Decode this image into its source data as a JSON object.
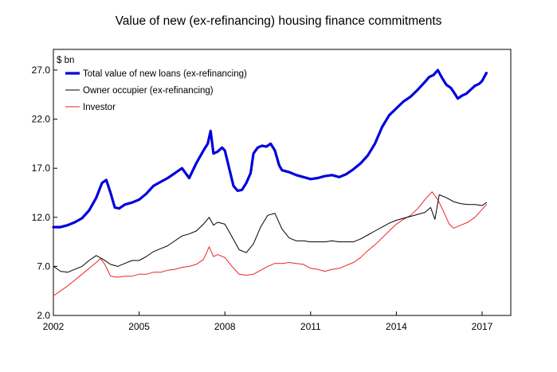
{
  "chart_data": {
    "type": "line",
    "title": "Value of new (ex-refinancing) housing finance commitments",
    "unit_label": "$ bn",
    "ylim": [
      2.0,
      29.5
    ],
    "yticks": [
      "2.0",
      "7.0",
      "12.0",
      "17.0",
      "22.0",
      "27.0"
    ],
    "xlim": [
      2002,
      2017.6
    ],
    "xticks": [
      "2002",
      "2005",
      "2008",
      "2011",
      "2014",
      "2017"
    ],
    "grid": false,
    "legend_position": "top-left",
    "series": [
      {
        "name": "Total value of new loans (ex-refinancing)",
        "color": "#0000dd",
        "x": [
          2002.0,
          2002.25,
          2002.5,
          2002.75,
          2003.0,
          2003.25,
          2003.5,
          2003.7,
          2003.85,
          2004.0,
          2004.15,
          2004.3,
          2004.5,
          2004.75,
          2005.0,
          2005.25,
          2005.5,
          2005.75,
          2006.0,
          2006.25,
          2006.5,
          2006.75,
          2007.0,
          2007.25,
          2007.4,
          2007.5,
          2007.6,
          2007.75,
          2007.9,
          2008.0,
          2008.15,
          2008.3,
          2008.45,
          2008.6,
          2008.75,
          2008.9,
          2009.0,
          2009.15,
          2009.3,
          2009.45,
          2009.6,
          2009.75,
          2009.9,
          2010.0,
          2010.25,
          2010.5,
          2010.75,
          2011.0,
          2011.25,
          2011.5,
          2011.75,
          2012.0,
          2012.25,
          2012.5,
          2012.75,
          2013.0,
          2013.25,
          2013.5,
          2013.75,
          2014.0,
          2014.25,
          2014.5,
          2014.75,
          2015.0,
          2015.15,
          2015.3,
          2015.45,
          2015.6,
          2015.75,
          2015.9,
          2016.0,
          2016.15,
          2016.3,
          2016.45,
          2016.6,
          2016.75,
          2016.9,
          2017.0,
          2017.15
        ],
        "values": [
          11.0,
          11.0,
          11.2,
          11.5,
          11.9,
          12.7,
          14.0,
          15.5,
          15.8,
          14.5,
          13.0,
          12.9,
          13.3,
          13.5,
          13.8,
          14.4,
          15.2,
          15.6,
          16.0,
          16.5,
          17.0,
          16.0,
          17.5,
          18.8,
          19.5,
          20.8,
          18.5,
          18.7,
          19.1,
          18.8,
          17.0,
          15.2,
          14.7,
          14.8,
          15.5,
          16.5,
          18.5,
          19.1,
          19.3,
          19.2,
          19.5,
          18.8,
          17.3,
          16.8,
          16.6,
          16.3,
          16.1,
          15.9,
          16.0,
          16.2,
          16.3,
          16.1,
          16.4,
          16.9,
          17.5,
          18.3,
          19.5,
          21.2,
          22.4,
          23.1,
          23.8,
          24.3,
          25.0,
          25.8,
          26.3,
          26.5,
          27.0,
          26.2,
          25.5,
          25.2,
          24.8,
          24.1,
          24.4,
          24.6,
          25.0,
          25.4,
          25.6,
          25.9,
          26.7
        ]
      },
      {
        "name": "Owner occupier (ex-refinancing)",
        "color": "#000000",
        "x": [
          2002.0,
          2002.25,
          2002.5,
          2002.75,
          2003.0,
          2003.25,
          2003.5,
          2003.75,
          2004.0,
          2004.25,
          2004.5,
          2004.75,
          2005.0,
          2005.25,
          2005.5,
          2005.75,
          2006.0,
          2006.25,
          2006.5,
          2006.75,
          2007.0,
          2007.25,
          2007.45,
          2007.6,
          2007.75,
          2008.0,
          2008.25,
          2008.5,
          2008.75,
          2009.0,
          2009.25,
          2009.5,
          2009.75,
          2010.0,
          2010.25,
          2010.5,
          2010.75,
          2011.0,
          2011.25,
          2011.5,
          2011.75,
          2012.0,
          2012.25,
          2012.5,
          2012.75,
          2013.0,
          2013.25,
          2013.5,
          2013.75,
          2014.0,
          2014.25,
          2014.5,
          2014.75,
          2015.0,
          2015.2,
          2015.35,
          2015.5,
          2015.75,
          2016.0,
          2016.25,
          2016.5,
          2016.75,
          2017.0,
          2017.15
        ],
        "values": [
          7.0,
          6.5,
          6.4,
          6.7,
          7.0,
          7.6,
          8.1,
          7.7,
          7.2,
          7.0,
          7.3,
          7.6,
          7.6,
          8.0,
          8.5,
          8.8,
          9.1,
          9.6,
          10.1,
          10.3,
          10.6,
          11.3,
          12.0,
          11.2,
          11.5,
          11.3,
          10.0,
          8.7,
          8.4,
          9.3,
          11.0,
          12.2,
          12.4,
          10.8,
          9.9,
          9.6,
          9.6,
          9.5,
          9.5,
          9.5,
          9.6,
          9.5,
          9.5,
          9.5,
          9.8,
          10.2,
          10.6,
          11.0,
          11.4,
          11.7,
          11.9,
          12.1,
          12.3,
          12.5,
          13.0,
          11.8,
          14.3,
          14.0,
          13.6,
          13.4,
          13.3,
          13.3,
          13.2,
          13.5
        ]
      },
      {
        "name": "Investor",
        "color": "#ee2222",
        "x": [
          2002.0,
          2002.25,
          2002.5,
          2002.75,
          2003.0,
          2003.25,
          2003.5,
          2003.65,
          2003.8,
          2004.0,
          2004.25,
          2004.5,
          2004.75,
          2005.0,
          2005.25,
          2005.5,
          2005.75,
          2006.0,
          2006.25,
          2006.5,
          2006.75,
          2007.0,
          2007.25,
          2007.45,
          2007.6,
          2007.75,
          2008.0,
          2008.25,
          2008.5,
          2008.75,
          2009.0,
          2009.25,
          2009.5,
          2009.75,
          2010.0,
          2010.25,
          2010.5,
          2010.75,
          2011.0,
          2011.25,
          2011.5,
          2011.75,
          2012.0,
          2012.25,
          2012.5,
          2012.75,
          2013.0,
          2013.25,
          2013.5,
          2013.75,
          2014.0,
          2014.25,
          2014.5,
          2014.75,
          2015.0,
          2015.25,
          2015.45,
          2015.65,
          2015.85,
          2016.0,
          2016.25,
          2016.5,
          2016.75,
          2017.0,
          2017.15
        ],
        "values": [
          4.0,
          4.5,
          5.0,
          5.6,
          6.2,
          6.8,
          7.4,
          7.8,
          7.2,
          6.0,
          5.9,
          6.0,
          6.0,
          6.2,
          6.2,
          6.4,
          6.4,
          6.6,
          6.7,
          6.9,
          7.0,
          7.2,
          7.7,
          9.0,
          8.0,
          8.2,
          7.9,
          7.0,
          6.2,
          6.1,
          6.2,
          6.6,
          7.0,
          7.3,
          7.3,
          7.4,
          7.3,
          7.2,
          6.8,
          6.7,
          6.5,
          6.7,
          6.8,
          7.1,
          7.4,
          7.9,
          8.6,
          9.2,
          9.9,
          10.6,
          11.3,
          11.8,
          12.2,
          12.9,
          13.8,
          14.6,
          13.8,
          12.6,
          11.3,
          10.9,
          11.2,
          11.5,
          12.0,
          12.8,
          13.3
        ]
      }
    ]
  }
}
